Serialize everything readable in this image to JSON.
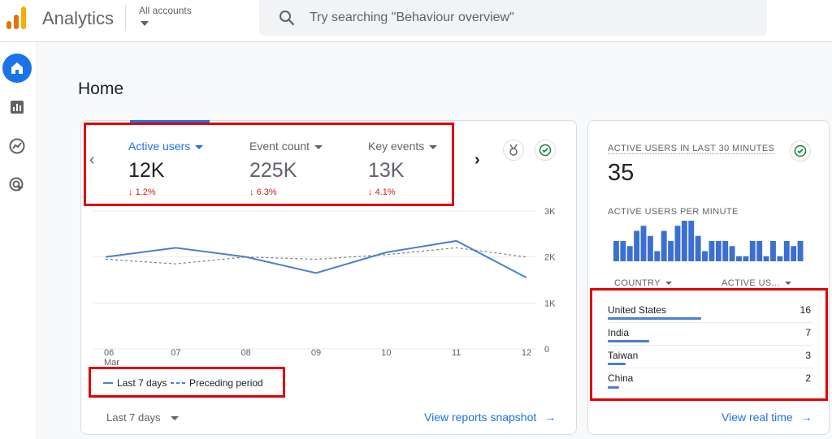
{
  "header": {
    "app_title": "Analytics",
    "accounts_label": "All accounts",
    "search_placeholder": "Try searching \"Behaviour overview\""
  },
  "sidebar": {
    "items": [
      {
        "name": "home",
        "icon": "home-icon",
        "active": true
      },
      {
        "name": "reports",
        "icon": "bar-chart-icon",
        "active": false
      },
      {
        "name": "explore",
        "icon": "trending-icon",
        "active": false
      },
      {
        "name": "advertising",
        "icon": "cursor-target-icon",
        "active": false
      }
    ]
  },
  "page": {
    "title": "Home"
  },
  "metrics": [
    {
      "label": "Active users",
      "value": "12K",
      "change": "1.2%",
      "active": true
    },
    {
      "label": "Event count",
      "value": "225K",
      "change": "6.3%",
      "active": false
    },
    {
      "label": "Key events",
      "value": "13K",
      "change": "4.1%",
      "active": false
    }
  ],
  "chart_data": {
    "type": "line",
    "x": [
      "06",
      "07",
      "08",
      "09",
      "10",
      "11",
      "12"
    ],
    "x_sublabel": "Mar",
    "ylim": [
      0,
      3000
    ],
    "y_ticks": [
      "3K",
      "2K",
      "1K",
      "0"
    ],
    "series": [
      {
        "name": "Last 7 days",
        "style": "solid",
        "color": "#4a7fd1",
        "values": [
          2000,
          2200,
          2000,
          1650,
          2100,
          2350,
          1550
        ]
      },
      {
        "name": "Preceding period",
        "style": "dashed",
        "color": "#7f7f7f",
        "values": [
          1950,
          1850,
          2000,
          1950,
          2050,
          2200,
          2000
        ]
      }
    ],
    "legend_placement": "bottom-left"
  },
  "legend": {
    "current": "Last 7 days",
    "previous": "Preceding period"
  },
  "footer": {
    "range": "Last 7 days",
    "link": "View reports snapshot"
  },
  "realtime": {
    "heading": "ACTIVE USERS IN LAST 30 MINUTES",
    "value": "35",
    "per_minute_heading": "ACTIVE USERS PER MINUTE",
    "per_minute_values": [
      4,
      4,
      3,
      6,
      7,
      5,
      2,
      6,
      4,
      7,
      8,
      8,
      5,
      2,
      4,
      4,
      4,
      3,
      1,
      1,
      4,
      4,
      1,
      4,
      1,
      4,
      3,
      4
    ],
    "col_country": "COUNTRY",
    "col_users": "ACTIVE US...",
    "countries": [
      {
        "name": "United States",
        "value": "16",
        "share": 1.0
      },
      {
        "name": "India",
        "value": "7",
        "share": 0.44
      },
      {
        "name": "Taiwan",
        "value": "3",
        "share": 0.19
      },
      {
        "name": "China",
        "value": "2",
        "share": 0.125
      }
    ],
    "link": "View real time"
  },
  "colors": {
    "accent": "#1a73e8",
    "highlight_box": "#e00000",
    "negative": "#c5221f"
  }
}
